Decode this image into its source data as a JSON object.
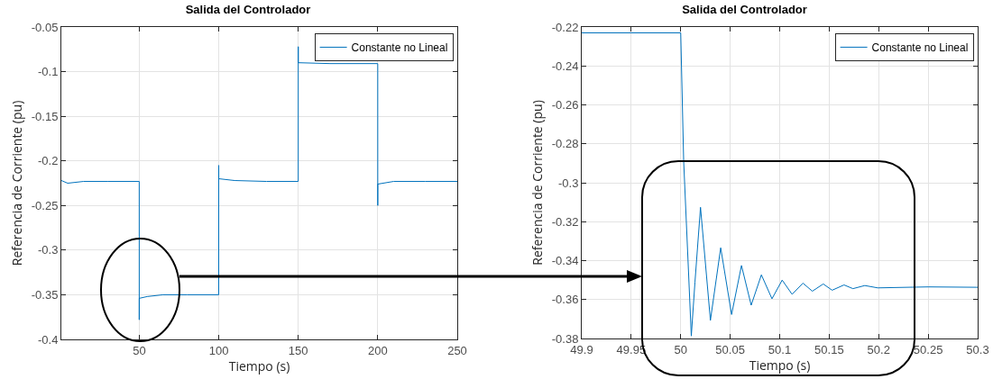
{
  "chart_data": [
    {
      "type": "line",
      "title": "Salida del Controlador",
      "xlabel": "Tiempo (s)",
      "ylabel": "Referencia de Corriente (pu)",
      "xlim": [
        1,
        250
      ],
      "ylim": [
        -0.4,
        -0.05
      ],
      "xticks": [
        50,
        100,
        150,
        200,
        250
      ],
      "yticks": [
        -0.4,
        -0.35,
        -0.3,
        -0.25,
        -0.2,
        -0.15,
        -0.1,
        -0.05
      ],
      "grid": true,
      "legend": "top right",
      "x": [
        1,
        5,
        15,
        30,
        49.99,
        50,
        50.01,
        55,
        65,
        80,
        99.99,
        100,
        100.01,
        110,
        130,
        149.99,
        150,
        150.01,
        170,
        199.99,
        200,
        200.01,
        210,
        230,
        250
      ],
      "series": [
        {
          "name": "Constante no Lineal",
          "color": "#0072bd",
          "values": [
            -0.222,
            -0.225,
            -0.223,
            -0.223,
            -0.223,
            -0.378,
            -0.354,
            -0.352,
            -0.35,
            -0.35,
            -0.35,
            -0.205,
            -0.22,
            -0.222,
            -0.223,
            -0.223,
            -0.072,
            -0.09,
            -0.091,
            -0.091,
            -0.25,
            -0.226,
            -0.223,
            -0.223,
            -0.223
          ]
        }
      ]
    },
    {
      "type": "line",
      "title": "Salida del Controlador",
      "xlabel": "Tiempo (s)",
      "ylabel": "Referencia de Corriente (pu)",
      "xlim": [
        49.9,
        50.3
      ],
      "ylim": [
        -0.38,
        -0.22
      ],
      "xticks": [
        49.9,
        49.95,
        50,
        50.05,
        50.1,
        50.15,
        50.2,
        50.25,
        50.3
      ],
      "yticks": [
        -0.38,
        -0.36,
        -0.34,
        -0.32,
        -0.3,
        -0.28,
        -0.26,
        -0.24,
        -0.22
      ],
      "grid": true,
      "legend": "top right",
      "x": [
        49.9,
        49.95,
        50.0,
        50.003,
        50.0107,
        50.0144,
        50.02,
        50.03,
        50.0404,
        50.0514,
        50.0614,
        50.0712,
        50.0815,
        50.0922,
        50.1025,
        50.1125,
        50.1235,
        50.133,
        50.144,
        50.153,
        50.165,
        50.174,
        50.186,
        50.199,
        50.25,
        50.3
      ],
      "series": [
        {
          "name": "Constante no Lineal",
          "color": "#0072bd",
          "values": [
            -0.223,
            -0.223,
            -0.223,
            -0.289,
            -0.3787,
            -0.351,
            -0.3126,
            -0.3707,
            -0.3334,
            -0.3677,
            -0.3425,
            -0.3629,
            -0.3473,
            -0.3596,
            -0.35,
            -0.3573,
            -0.3516,
            -0.3557,
            -0.352,
            -0.3552,
            -0.3525,
            -0.3544,
            -0.3528,
            -0.354,
            -0.3535,
            -0.3537
          ]
        }
      ]
    }
  ]
}
